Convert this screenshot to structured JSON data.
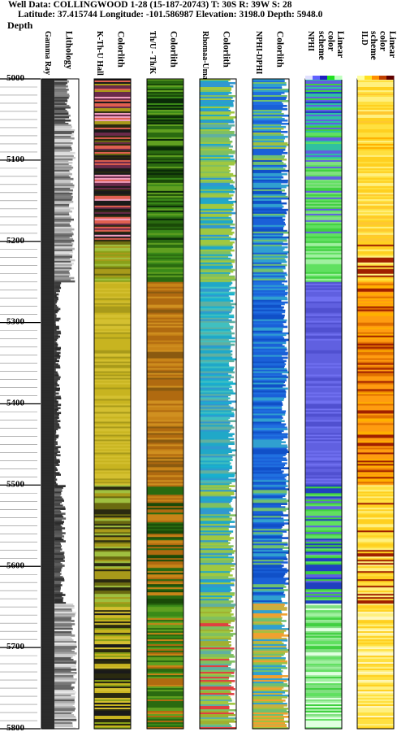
{
  "header": {
    "line1": "Well Data: COLLINGWOOD 1-28 (15-187-20743) T: 30S R: 39W S: 28",
    "line2": "Latitude: 37.415744 Longitude: -101.586987 Elevation: 3198.0 Depth: 5948.0"
  },
  "depth_title": "Depth",
  "tracks": [
    {
      "id": "gr",
      "titles": [
        "Gamma Ray",
        "Lithology"
      ]
    },
    {
      "id": "kthu",
      "titles": [
        "K-Th-U Hall",
        "Colorlith"
      ]
    },
    {
      "id": "thuk",
      "titles": [
        "Th/U - Th/K",
        "Colorlith"
      ]
    },
    {
      "id": "rhomaa",
      "titles": [
        "Rhomaa-Umaa",
        "Colorlith"
      ]
    },
    {
      "id": "nphidphi",
      "titles": [
        "NPHI-DPHI",
        "Colorlith"
      ]
    },
    {
      "id": "nphi",
      "titles": [
        "NPHI",
        "Linear color scheme"
      ]
    },
    {
      "id": "ild",
      "titles": [
        "ILD",
        "Linear color scheme"
      ]
    }
  ],
  "colors": {
    "frame": "#000000",
    "gamma_fill": "#2b2b2b",
    "kthu_palette": [
      "#c8b420",
      "#a89a1a",
      "#d4c030",
      "#6a6a10",
      "#2a2a10",
      "#e06050",
      "#f0a0c0",
      "#6a2a4a",
      "#1a1a1a",
      "#a0c040",
      "#8aa018"
    ],
    "thuk_palette": [
      "#b06a10",
      "#c88418",
      "#8a5a10",
      "#2a6a10",
      "#1a4a08",
      "#3a8a18",
      "#60a020",
      "#d09020",
      "#0a2a08"
    ],
    "rhomaa_palette": [
      "#20a8c8",
      "#18b0d0",
      "#40c0c0",
      "#80c060",
      "#a0c840",
      "#3098d0",
      "#60b0a0",
      "#c8c040",
      "#e04040",
      "#a0b030"
    ],
    "nphidphi_palette": [
      "#1a60d8",
      "#2070e0",
      "#1050c8",
      "#30a0d0",
      "#70c070",
      "#a0c040",
      "#c8b040",
      "#f0a030",
      "#40b0a0"
    ],
    "nphi_palette": [
      "#6060e0",
      "#5050d0",
      "#7070f0",
      "#40d040",
      "#60e060",
      "#a0f0a0",
      "#30c0a0",
      "#80e080",
      "#2040c0",
      "#e0ffe0"
    ],
    "ild_palette": [
      "#ffd020",
      "#ffb000",
      "#ff9c10",
      "#ffe040",
      "#fff080",
      "#e07000",
      "#a02000",
      "#ffc830",
      "#fff8c0"
    ],
    "nphi_scale": [
      "#e0e0ff",
      "#6060ff",
      "#2020c0",
      "#20e020",
      "#c0ffc0"
    ],
    "ild_scale": [
      "#ffffa0",
      "#ffe020",
      "#ff9000",
      "#c04000",
      "#600000"
    ]
  },
  "chart_data": {
    "type": "log-track",
    "y_axis_label": "Depth",
    "ylim": [
      5000,
      5800
    ],
    "depth_ticks": [
      5000,
      5100,
      5200,
      5300,
      5400,
      5500,
      5600,
      5700,
      5800
    ],
    "minor_tick_interval": 10,
    "intervals": [
      {
        "top": 5000,
        "base": 5055,
        "gamma": 0.55,
        "lith": "dark mixed",
        "kthu": "pink/red/brown",
        "nphi": "blue/green"
      },
      {
        "top": 5055,
        "base": 5100,
        "gamma": 0.75,
        "lith": "grey banded",
        "kthu": "dark brown",
        "nphi": "green/blue"
      },
      {
        "top": 5100,
        "base": 5200,
        "gamma": 0.7,
        "lith": "grey/white banded",
        "kthu": "purple/pink",
        "nphi": "green/blue"
      },
      {
        "top": 5200,
        "base": 5250,
        "gamma": 0.72,
        "lith": "grey banded",
        "kthu": "olive green",
        "nphi": "green"
      },
      {
        "top": 5250,
        "base": 5500,
        "gamma": 0.15,
        "lith": "dark grey",
        "kthu": "yellow/olive",
        "nphi": "blue/purple"
      },
      {
        "top": 5500,
        "base": 5645,
        "gamma": 0.35,
        "lith": "grey banded",
        "kthu": "olive/dark",
        "nphi": "green/blue"
      },
      {
        "top": 5645,
        "base": 5800,
        "gamma": 0.8,
        "lith": "light grey banded",
        "kthu": "dark/olive/yellow",
        "nphi": "green/light green"
      }
    ]
  }
}
